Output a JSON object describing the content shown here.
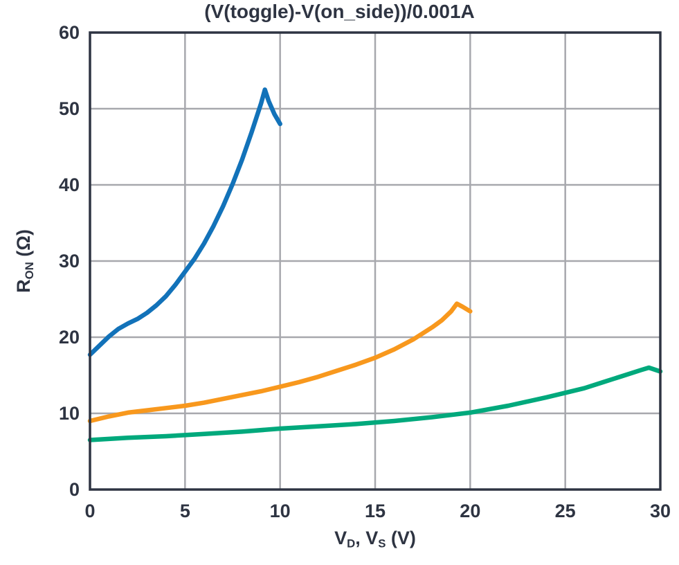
{
  "chart_data": {
    "type": "line",
    "title": "(V(toggle)-V(on_side))/0.001A",
    "xlabel_parts": [
      {
        "t": "V"
      },
      {
        "t": "D",
        "sub": true
      },
      {
        "t": ", V"
      },
      {
        "t": "S",
        "sub": true
      },
      {
        "t": " (V)"
      }
    ],
    "ylabel_parts": [
      {
        "t": "R"
      },
      {
        "t": "ON",
        "sub": true
      },
      {
        "t": " (Ω)"
      }
    ],
    "xlim": [
      0,
      30
    ],
    "ylim": [
      0,
      60
    ],
    "xticks": [
      0,
      5,
      10,
      15,
      20,
      25,
      30
    ],
    "yticks": [
      0,
      10,
      20,
      30,
      40,
      50,
      60
    ],
    "grid": true,
    "legend_position": "none",
    "series": [
      {
        "name": "series-1-blue",
        "color": "#1272b9",
        "points": [
          [
            0,
            17.7
          ],
          [
            0.5,
            18.9
          ],
          [
            1,
            20.1
          ],
          [
            1.5,
            21.1
          ],
          [
            2,
            21.8
          ],
          [
            2.5,
            22.4
          ],
          [
            3,
            23.2
          ],
          [
            3.5,
            24.2
          ],
          [
            4,
            25.4
          ],
          [
            4.5,
            26.9
          ],
          [
            5,
            28.6
          ],
          [
            5.5,
            30.3
          ],
          [
            6,
            32.3
          ],
          [
            6.5,
            34.6
          ],
          [
            7,
            37.2
          ],
          [
            7.5,
            40.1
          ],
          [
            8,
            43.3
          ],
          [
            8.5,
            46.9
          ],
          [
            9,
            50.7
          ],
          [
            9.2,
            52.5
          ],
          [
            9.4,
            51.0
          ],
          [
            9.7,
            49.3
          ],
          [
            10,
            48.0
          ]
        ]
      },
      {
        "name": "series-2-orange",
        "color": "#f8981d",
        "points": [
          [
            0,
            9.0
          ],
          [
            1,
            9.6
          ],
          [
            2,
            10.1
          ],
          [
            3,
            10.4
          ],
          [
            4,
            10.7
          ],
          [
            5,
            11.0
          ],
          [
            6,
            11.4
          ],
          [
            7,
            11.9
          ],
          [
            8,
            12.4
          ],
          [
            9,
            12.9
          ],
          [
            10,
            13.5
          ],
          [
            11,
            14.1
          ],
          [
            12,
            14.8
          ],
          [
            13,
            15.6
          ],
          [
            14,
            16.4
          ],
          [
            15,
            17.3
          ],
          [
            16,
            18.4
          ],
          [
            17,
            19.7
          ],
          [
            18,
            21.3
          ],
          [
            18.5,
            22.2
          ],
          [
            19,
            23.4
          ],
          [
            19.3,
            24.4
          ],
          [
            19.6,
            24.0
          ],
          [
            20,
            23.4
          ]
        ]
      },
      {
        "name": "series-3-green",
        "color": "#00a97c",
        "points": [
          [
            0,
            6.5
          ],
          [
            2,
            6.8
          ],
          [
            4,
            7.0
          ],
          [
            6,
            7.3
          ],
          [
            8,
            7.6
          ],
          [
            10,
            8.0
          ],
          [
            12,
            8.3
          ],
          [
            14,
            8.6
          ],
          [
            16,
            9.0
          ],
          [
            18,
            9.5
          ],
          [
            20,
            10.1
          ],
          [
            22,
            11.0
          ],
          [
            24,
            12.1
          ],
          [
            25,
            12.7
          ],
          [
            26,
            13.3
          ],
          [
            27,
            14.1
          ],
          [
            28,
            14.9
          ],
          [
            29,
            15.7
          ],
          [
            29.4,
            16.0
          ],
          [
            30,
            15.5
          ]
        ]
      }
    ]
  },
  "styles": {
    "frame_color": "#2e3442",
    "grid_color": "#a7a8ad",
    "text_color": "#2e3442",
    "background": "#ffffff"
  }
}
